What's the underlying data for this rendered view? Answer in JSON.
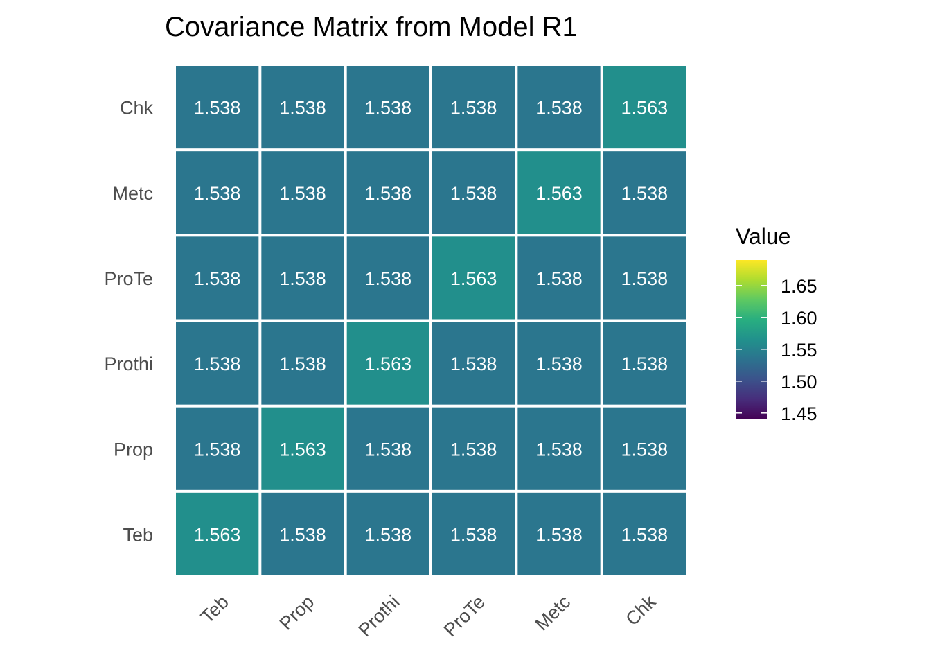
{
  "chart_data": {
    "type": "heatmap",
    "title": "Covariance Matrix from Model R1",
    "xlabel": "",
    "ylabel": "",
    "x_categories": [
      "Teb",
      "Prop",
      "Prothi",
      "ProTe",
      "Metc",
      "Chk"
    ],
    "y_categories": [
      "Teb",
      "Prop",
      "Prothi",
      "ProTe",
      "Metc",
      "Chk"
    ],
    "values": [
      [
        1.563,
        1.538,
        1.538,
        1.538,
        1.538,
        1.538
      ],
      [
        1.538,
        1.563,
        1.538,
        1.538,
        1.538,
        1.538
      ],
      [
        1.538,
        1.538,
        1.563,
        1.538,
        1.538,
        1.538
      ],
      [
        1.538,
        1.538,
        1.538,
        1.563,
        1.538,
        1.538
      ],
      [
        1.538,
        1.538,
        1.538,
        1.538,
        1.563,
        1.538
      ],
      [
        1.538,
        1.538,
        1.538,
        1.538,
        1.538,
        1.563
      ]
    ],
    "cell_labels_shown": true,
    "color_scale": {
      "name": "viridis",
      "range": [
        1.44,
        1.69
      ],
      "stops": [
        "#440154",
        "#472d7b",
        "#3b528b",
        "#2c728e",
        "#21918c",
        "#28ae80",
        "#5ec962",
        "#addc30",
        "#fde725"
      ]
    },
    "legend": {
      "title": "Value",
      "ticks": [
        "1.45",
        "1.50",
        "1.55",
        "1.60",
        "1.65"
      ],
      "placement": "right"
    },
    "grid": false
  }
}
